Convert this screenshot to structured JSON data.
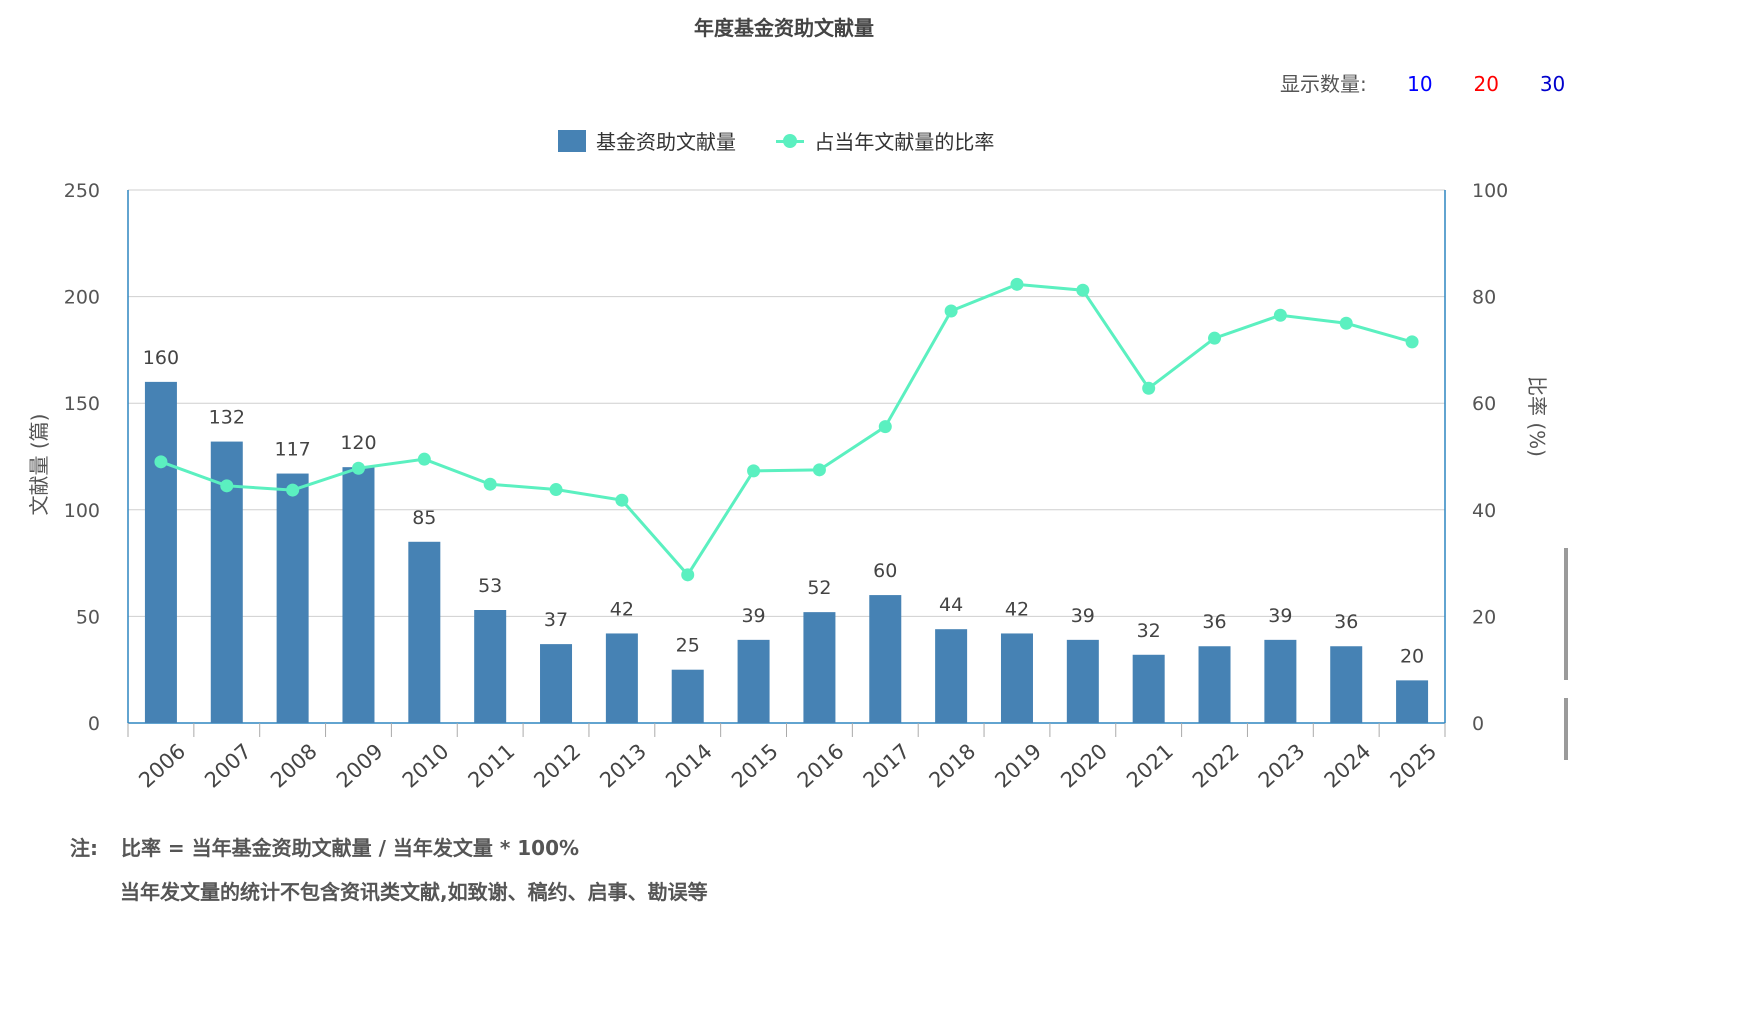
{
  "page": {
    "title": "年度基金资助文献量"
  },
  "display_count": {
    "label": "显示数量:",
    "options": [
      {
        "label": "10",
        "color": "#0000ff"
      },
      {
        "label": "20",
        "color": "#ff0000"
      },
      {
        "label": "30",
        "color": "#0000cc"
      }
    ]
  },
  "legend": {
    "bar_label": "基金资助文献量",
    "line_label": "占当年文献量的比率"
  },
  "notes": {
    "prefix": "注:",
    "line1": "比率 = 当年基金资助文献量 / 当年发文量 * 100%",
    "line2": "当年发文量的统计不包含资讯类文献,如致谢、稿约、启事、勘误等"
  },
  "chart_data": {
    "type": "bar",
    "title": "年度基金资助文献量",
    "categories": [
      "2006",
      "2007",
      "2008",
      "2009",
      "2010",
      "2011",
      "2012",
      "2013",
      "2014",
      "2015",
      "2016",
      "2017",
      "2018",
      "2019",
      "2020",
      "2021",
      "2022",
      "2023",
      "2024",
      "2025"
    ],
    "series": [
      {
        "name": "基金资助文献量",
        "type": "bar",
        "axis": "left",
        "color": "#4682B4",
        "values": [
          160,
          132,
          117,
          120,
          85,
          53,
          37,
          42,
          25,
          39,
          52,
          60,
          44,
          42,
          39,
          32,
          36,
          39,
          36,
          20
        ]
      },
      {
        "name": "占当年文献量的比率",
        "type": "line",
        "axis": "right",
        "color": "#5BF0C0",
        "values": [
          49.0,
          44.5,
          43.7,
          47.8,
          49.5,
          44.8,
          43.8,
          41.8,
          27.8,
          47.3,
          47.5,
          55.6,
          77.3,
          82.3,
          81.2,
          62.8,
          72.2,
          76.5,
          75.0,
          71.5
        ]
      }
    ],
    "ylabel": "文献量 (篇)",
    "ylim": [
      0,
      250
    ],
    "yticks": [
      0,
      50,
      100,
      150,
      200,
      250
    ],
    "y2label": "比率 (%)",
    "y2lim": [
      0,
      100
    ],
    "y2ticks": [
      0,
      20,
      40,
      60,
      80,
      100
    ],
    "grid": true,
    "legend": "top-center"
  }
}
